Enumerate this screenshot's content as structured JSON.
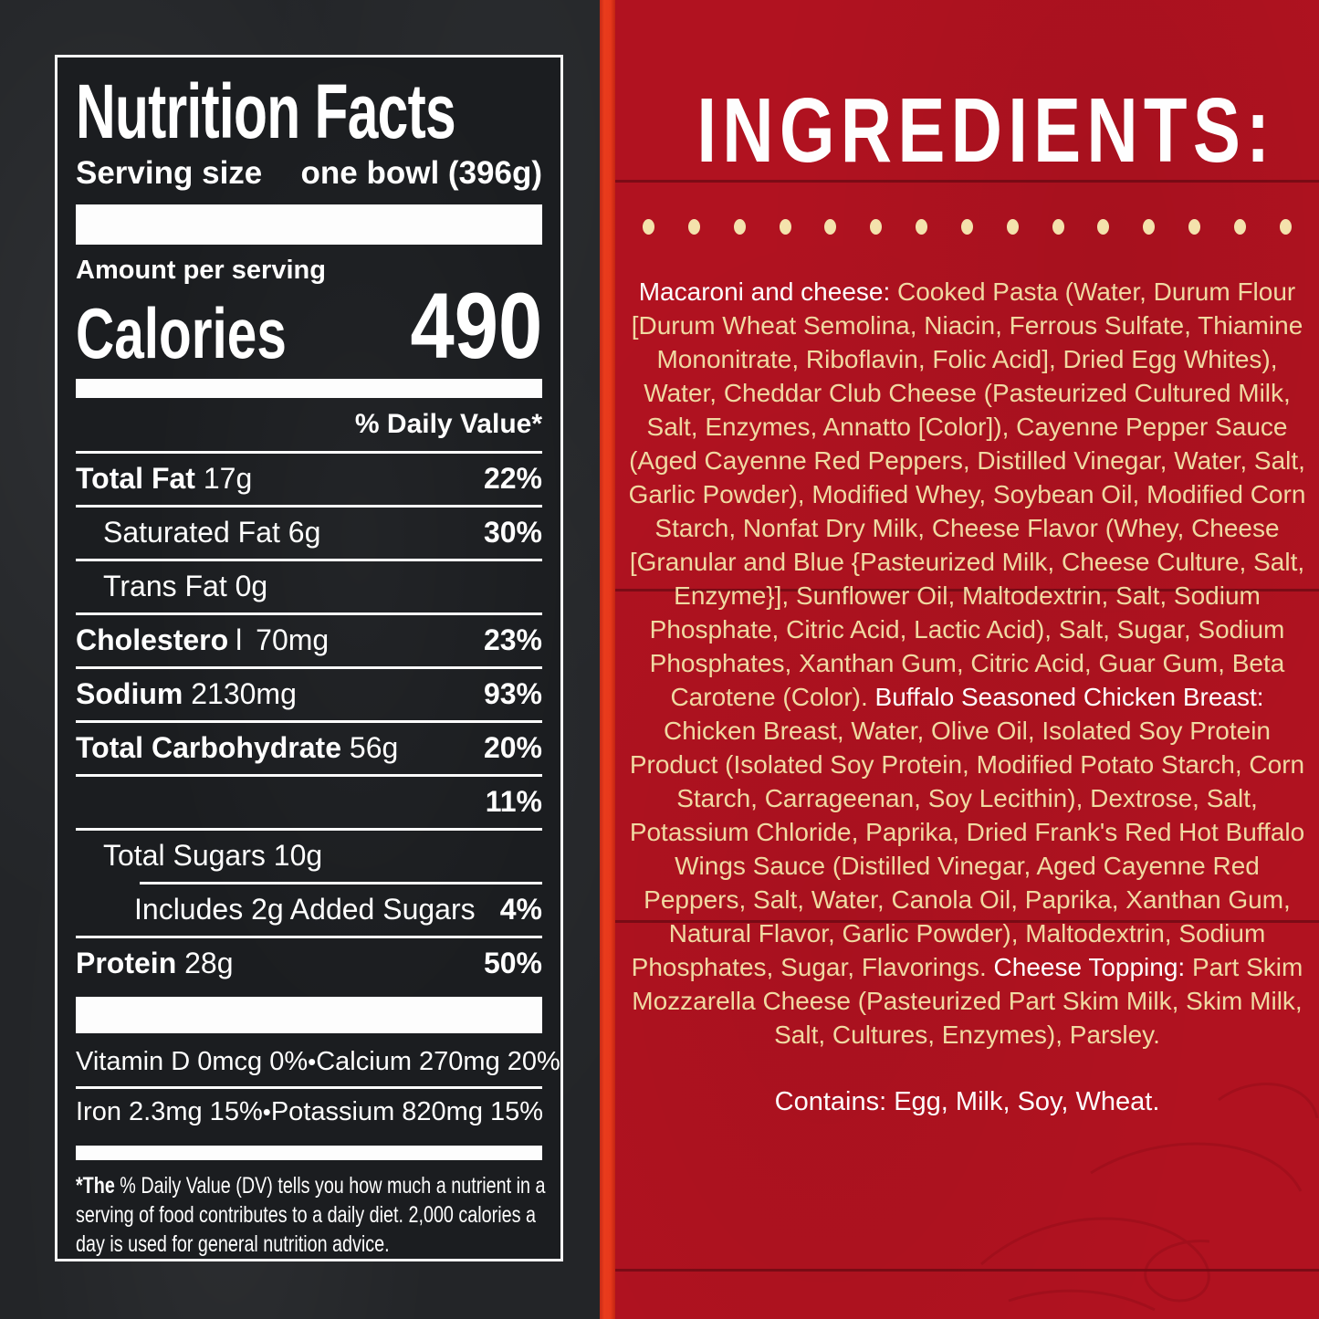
{
  "nutrition": {
    "title": "Nutrition Facts",
    "serving_size_label": "Serving size",
    "serving_size_value": "one bowl (396g)",
    "amount_per_serving": "Amount per serving",
    "calories_label": "Calories",
    "calories_value": "490",
    "daily_value_header": "% Daily Value*",
    "rows": [
      {
        "name": "Total Fat",
        "amount": "17g",
        "dv": "22%",
        "indent": 0,
        "bold": true
      },
      {
        "name": "Saturated Fat",
        "amount": "6g",
        "dv": "30%",
        "indent": 1,
        "bold": false
      },
      {
        "name": "Trans Fat",
        "amount": "0g",
        "dv": "",
        "indent": 1,
        "bold": false
      },
      {
        "name": "Cholesterol",
        "amount": "70mg",
        "dv": "23%",
        "indent": 0,
        "bold": true,
        "thin_last_char": true
      },
      {
        "name": "Sodium",
        "amount": "2130mg",
        "dv": "93%",
        "indent": 0,
        "bold": true
      },
      {
        "name": "Total Carbohydrate",
        "amount": "56g",
        "dv": "20%",
        "indent": 0,
        "bold": true
      },
      {
        "name": "",
        "amount": "",
        "dv": "11%",
        "indent": 1,
        "bold": false
      },
      {
        "name": "",
        "amount": "Total Sugars 10g",
        "dv": "",
        "indent": 1,
        "bold": false
      },
      {
        "name": "",
        "amount": "Includes 2g Added Sugars",
        "dv": "4%",
        "indent": 2,
        "bold": false,
        "sep_indent": true
      },
      {
        "name": "Protein",
        "amount": "28g",
        "dv": "50%",
        "indent": 0,
        "bold": true
      }
    ],
    "bullet": "•",
    "micronutrients": [
      {
        "left": "Vitamin D 0mcg 0%",
        "right": "Calcium 270mg 20%"
      },
      {
        "left": "Iron 2.3mg 15%",
        "right": "Potassium 820mg 15%"
      }
    ],
    "footnote_prefix": "*The",
    "footnote_rest": " % Daily Value (DV) tells you how much a nutrient in a serving of food contributes to a daily diet. 2,000 calories a day is used for general nutrition advice."
  },
  "ingredients": {
    "heading": "INGREDIENTS:",
    "dots_count": 15,
    "segments": [
      {
        "style": "white",
        "text": "Macaroni and cheese: "
      },
      {
        "style": "yellow",
        "text": "Cooked Pasta (Water, Durum Flour [Durum Wheat Semolina, Niacin, Ferrous Sulfate, Thiamine Mononitrate, Riboflavin, Folic Acid], Dried Egg Whites), Water, Cheddar Club Cheese (Pasteurized Cultured Milk, Salt, Enzymes, Annatto [Color]), Cayenne Pepper Sauce (Aged Cayenne Red Peppers, Distilled Vinegar, Water, Salt, Garlic Powder), Modified Whey, Soybean Oil, Modified Corn Starch, Nonfat Dry Milk, Cheese Flavor (Whey, Cheese [Granular and Blue {Pasteurized Milk, Cheese Culture, Salt, Enzyme}], Sunflower Oil, Maltodextrin, Salt, Sodium Phosphate, Citric Acid, Lactic Acid), Salt, Sugar, Sodium Phosphates, Xanthan Gum, Citric Acid, Guar Gum, Beta Carotene (Color). "
      },
      {
        "style": "white",
        "text": "Buffalo Seasoned Chicken Breast: "
      },
      {
        "style": "yellow",
        "text": "Chicken Breast, Water, Olive Oil, Isolated Soy Protein Product (Isolated Soy Protein, Modified Potato Starch, Corn Starch, Carrageenan, Soy Lecithin), Dextrose, Salt, Potassium Chloride, Paprika, Dried Frank's Red Hot Buffalo Wings Sauce (Distilled Vinegar, Aged Cayenne Red Peppers, Salt, Water, Canola Oil, Paprika, Xanthan Gum, Natural Flavor, Garlic Powder), Maltodextrin, Sodium Phosphates, Sugar, Flavorings. "
      },
      {
        "style": "white",
        "text": "Cheese Topping: "
      },
      {
        "style": "yellow",
        "text": "Part Skim Mozzarella Cheese (Pasteurized Part Skim Milk, Skim Milk, Salt, Cultures, Enzymes), Parsley."
      }
    ],
    "contains": "Contains: Egg, Milk, Soy, Wheat."
  },
  "colors": {
    "chalkboard_bg": "#232528",
    "label_bg": "#1b1d20",
    "label_text": "#ffffff",
    "red_bg": "#b11220",
    "accent_strip": "#e6381b",
    "cream_text": "#f0d9a2",
    "dot_color": "#f4e2ac"
  }
}
